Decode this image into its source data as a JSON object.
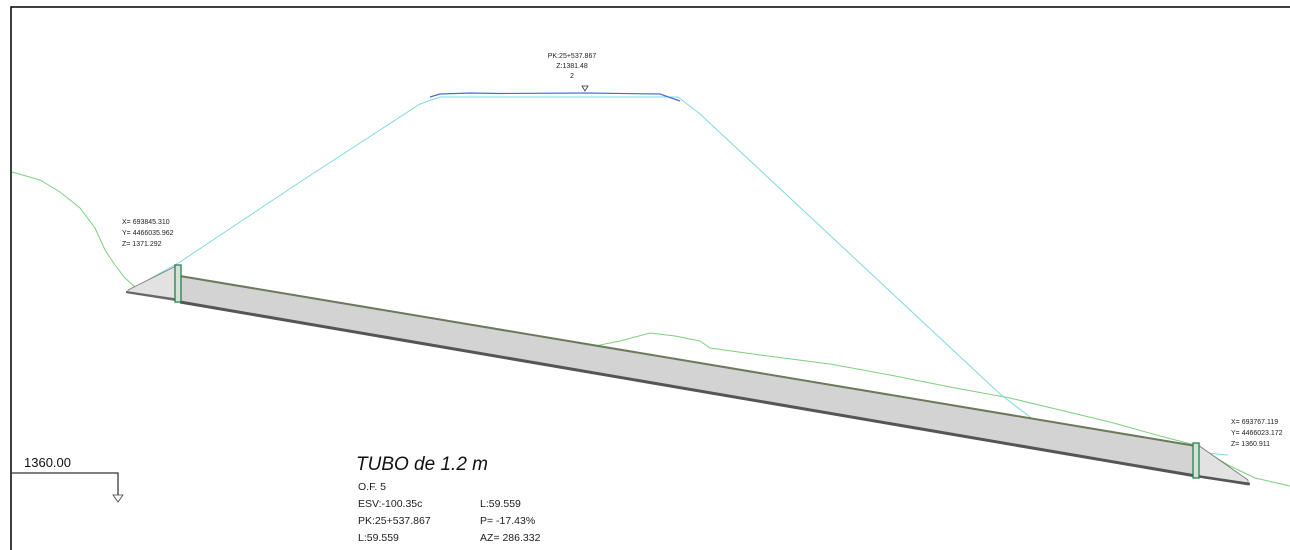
{
  "top_station": {
    "pk": "PK:25+537.867",
    "z": "Z:1381.48",
    "index": "2"
  },
  "left_point": {
    "x": "X= 693845.310",
    "y": "Y= 4466035.962",
    "z": "Z= 1371.292"
  },
  "right_point": {
    "x": "X= 693767.119",
    "y": "Y= 4466023.172",
    "z": "Z= 1360.911"
  },
  "elevation_reference": "1360.00",
  "pipe": {
    "title": "TUBO de 1.2 m",
    "of": "O.F. 5",
    "esv": "ESV:-100.35c",
    "pk": "PK:25+537.867",
    "l_left": "L:59.559",
    "l_right": "L:59.559",
    "slope": "P= -17.43%",
    "azimuth": "AZ= 286.332"
  },
  "colors": {
    "terrain": "#7fcf7f",
    "embankment": "#7fd9e0",
    "road_top": "#4a6fd0",
    "pipe_fill": "#d3d3d3",
    "pipe_edge": "#555555",
    "headwall": "#2e7d4f"
  }
}
